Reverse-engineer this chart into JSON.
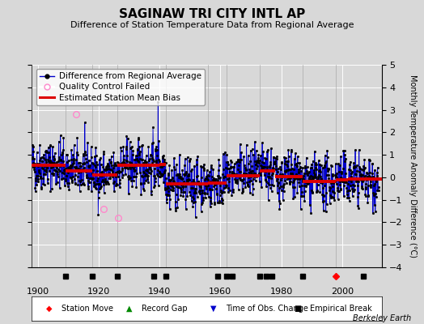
{
  "title": "SAGINAW TRI CITY INTL AP",
  "subtitle": "Difference of Station Temperature Data from Regional Average",
  "ylabel": "Monthly Temperature Anomaly Difference (°C)",
  "xlim": [
    1898,
    2013
  ],
  "ylim": [
    -4,
    5
  ],
  "xticks": [
    1900,
    1920,
    1940,
    1960,
    1980,
    2000
  ],
  "bg_color": "#d8d8d8",
  "plot_bg_color": "#d8d8d8",
  "grid_color": "#ffffff",
  "line_color": "#0000cc",
  "bias_color": "#dd0000",
  "marker_color": "#000000",
  "qc_color": "#ff88cc",
  "title_fontsize": 11,
  "subtitle_fontsize": 8,
  "tick_fontsize": 8,
  "legend_fontsize": 7.5,
  "watermark": "Berkeley Earth",
  "seed": 42,
  "year_start": 1898,
  "year_end": 2012,
  "bias_segments": [
    {
      "start": 1898,
      "end": 1909,
      "bias": 0.55
    },
    {
      "start": 1909,
      "end": 1918,
      "bias": 0.3
    },
    {
      "start": 1918,
      "end": 1926,
      "bias": 0.1
    },
    {
      "start": 1926,
      "end": 1940,
      "bias": 0.52
    },
    {
      "start": 1940,
      "end": 1942,
      "bias": 0.58
    },
    {
      "start": 1942,
      "end": 1956,
      "bias": -0.28
    },
    {
      "start": 1956,
      "end": 1962,
      "bias": -0.25
    },
    {
      "start": 1962,
      "end": 1973,
      "bias": 0.08
    },
    {
      "start": 1973,
      "end": 1978,
      "bias": 0.28
    },
    {
      "start": 1978,
      "end": 1987,
      "bias": 0.03
    },
    {
      "start": 1987,
      "end": 1998,
      "bias": -0.18
    },
    {
      "start": 1998,
      "end": 2002,
      "bias": -0.12
    },
    {
      "start": 2002,
      "end": 2013,
      "bias": -0.08
    }
  ],
  "vertical_lines": [
    1909,
    1918,
    1926,
    1942,
    1956,
    1962,
    1973,
    1987,
    1998
  ],
  "empirical_breaks": [
    1909,
    1918,
    1926,
    1938,
    1942,
    1959,
    1962,
    1964,
    1973,
    1975,
    1977,
    1987,
    2007
  ],
  "station_moves": [
    1998
  ],
  "obs_changes": [],
  "record_gaps": [],
  "qc_failed": [
    {
      "year": 1912.5,
      "value": 2.8
    },
    {
      "year": 1921.5,
      "value": -1.4
    },
    {
      "year": 1926.5,
      "value": -1.8
    }
  ],
  "marker_size": 2.0,
  "line_width": 0.6
}
